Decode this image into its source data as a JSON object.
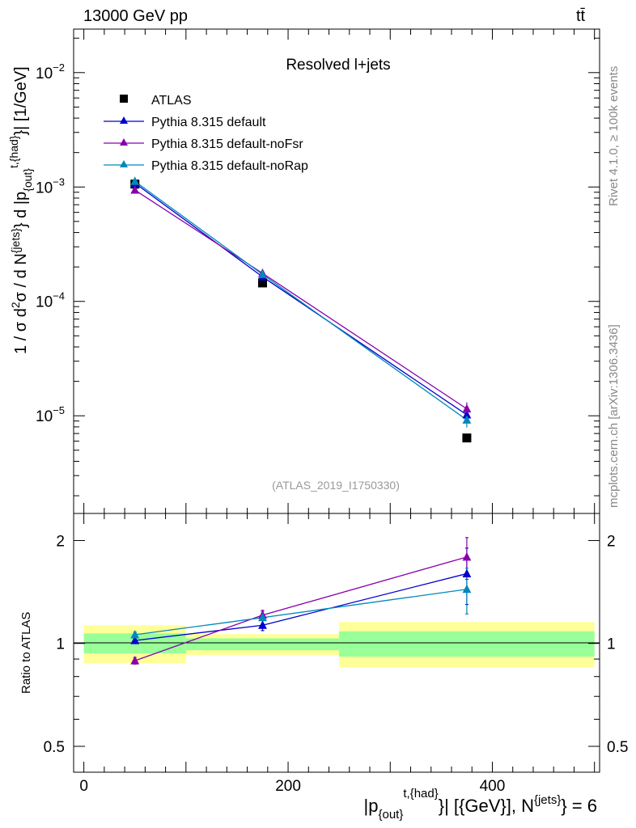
{
  "header": {
    "energy_label": "13000 GeV pp",
    "process_base": "tt",
    "process_bar": "̄"
  },
  "side_labels": {
    "rivet": "Rivet 4.1.0, ≥ 100k events",
    "mcplots": "mcplots.cern.ch [arXiv:1306.3436]"
  },
  "chart_data": [
    {
      "type": "scatter",
      "panel": "main",
      "title": "Resolved l+jets",
      "reference_label": "(ATLAS_2019_I1750330)",
      "yscale": "log",
      "xlim": [
        -10,
        505
      ],
      "ylim": [
        1.4e-06,
        0.024
      ],
      "ylabel": {
        "main": "1 / σ d",
        "sup1": "2",
        "mid1": "σ / d N",
        "sup2": "{jets}",
        "mid2": "} d |p",
        "sub": "{out}",
        "sup3": "t,{had}",
        "tail": "}| [1/GeV]"
      },
      "yticks": [
        {
          "value": 1e-05,
          "base": "10",
          "exp": "−5"
        },
        {
          "value": 0.0001,
          "base": "10",
          "exp": "−4"
        },
        {
          "value": 0.001,
          "base": "10",
          "exp": "−3"
        },
        {
          "value": 0.01,
          "base": "10",
          "exp": "−2"
        }
      ],
      "legend_position": "top-left",
      "series": [
        {
          "name": "ATLAS",
          "color": "#000000",
          "marker": "square",
          "x": [
            50,
            175,
            375
          ],
          "y": [
            0.00106,
            0.000145,
            6.4e-06
          ],
          "yerr": [
            [
              0,
              0
            ],
            [
              0,
              0
            ],
            [
              0,
              0
            ]
          ]
        },
        {
          "name": "Pythia 8.315 default",
          "color": "#0000cc",
          "marker": "triangle",
          "x": [
            50,
            175,
            375
          ],
          "y": [
            0.00108,
            0.000164,
            1.02e-05
          ],
          "yerr": [
            [
              2e-05,
              2e-05
            ],
            [
              5e-06,
              5e-06
            ],
            [
              1.2e-06,
              1.2e-06
            ]
          ]
        },
        {
          "name": "Pythia 8.315 default-noFsr",
          "color": "#8800aa",
          "marker": "triangle",
          "x": [
            50,
            175,
            375
          ],
          "y": [
            0.00094,
            0.000176,
            1.15e-05
          ],
          "yerr": [
            [
              2e-05,
              2e-05
            ],
            [
              5e-06,
              5e-06
            ],
            [
              1.6e-06,
              1.6e-06
            ]
          ]
        },
        {
          "name": "Pythia 8.315 default-noRap",
          "color": "#0088bb",
          "marker": "triangle",
          "x": [
            50,
            175,
            375
          ],
          "y": [
            0.00112,
            0.000172,
            9.2e-06
          ],
          "yerr": [
            [
              2e-05,
              2e-05
            ],
            [
              5e-06,
              5e-06
            ],
            [
              1.3e-06,
              1.3e-06
            ]
          ]
        }
      ]
    },
    {
      "type": "scatter",
      "panel": "ratio",
      "ylabel": "Ratio to ATLAS",
      "yscale": "log",
      "xlim": [
        -10,
        505
      ],
      "ylim": [
        0.42,
        2.4
      ],
      "xticks": [
        0,
        200,
        400
      ],
      "yticks": [
        0.5,
        1,
        2
      ],
      "xlabel": {
        "p": "|p",
        "sub": "{out}",
        "sup": "t,{had}",
        "mid": "}| [{GeV}], N",
        "sup2": "{jets}",
        "tail": "} = 6"
      },
      "bands": [
        {
          "x0": 0,
          "x1": 100,
          "inner": [
            0.935,
            1.07
          ],
          "outer": [
            0.875,
            1.13
          ]
        },
        {
          "x0": 100,
          "x1": 250,
          "inner": [
            0.955,
            1.035
          ],
          "outer": [
            0.925,
            1.065
          ]
        },
        {
          "x0": 250,
          "x1": 500,
          "inner": [
            0.915,
            1.085
          ],
          "outer": [
            0.85,
            1.155
          ]
        }
      ],
      "series": [
        {
          "name": "Pythia 8.315 default",
          "color": "#0000cc",
          "x": [
            50,
            175,
            375
          ],
          "y": [
            1.02,
            1.13,
            1.6
          ],
          "yerr": [
            [
              0.02,
              0.02
            ],
            [
              0.04,
              0.04
            ],
            [
              0.3,
              0.3
            ]
          ]
        },
        {
          "name": "Pythia 8.315 default-noFsr",
          "color": "#8800aa",
          "x": [
            50,
            175,
            375
          ],
          "y": [
            0.89,
            1.21,
            1.79
          ],
          "yerr": [
            [
              0.02,
              0.02
            ],
            [
              0.04,
              0.04
            ],
            [
              0.25,
              0.25
            ]
          ]
        },
        {
          "name": "Pythia 8.315 default-noRap",
          "color": "#0088bb",
          "x": [
            50,
            175,
            375
          ],
          "y": [
            1.06,
            1.19,
            1.44
          ],
          "yerr": [
            [
              0.02,
              0.02
            ],
            [
              0.05,
              0.05
            ],
            [
              0.22,
              0.22
            ]
          ]
        }
      ]
    }
  ]
}
